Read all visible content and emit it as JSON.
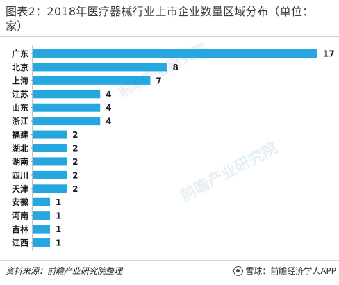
{
  "title": "图表2：2018年医疗器械行业上市企业数量区域分布（单位：家）",
  "source": "资料来源：前瞻产业研究院整理",
  "credit": {
    "logo_icon": "snowball-logo-icon",
    "text": "雪球：前瞻经济学人APP"
  },
  "watermark": "前瞻产业研究院",
  "colors": {
    "bar": "#27a7e0",
    "label": "#1a1a1a",
    "axis": "#8a8a8a"
  },
  "chart_data": {
    "type": "bar",
    "orientation": "horizontal",
    "title": "图表2：2018年医疗器械行业上市企业数量区域分布（单位：家）",
    "categories": [
      "广东",
      "北京",
      "上海",
      "江苏",
      "山东",
      "浙江",
      "福建",
      "湖北",
      "湖南",
      "四川",
      "天津",
      "安徽",
      "河南",
      "吉林",
      "江西"
    ],
    "values": [
      17,
      8,
      7,
      4,
      4,
      4,
      2,
      2,
      2,
      2,
      2,
      1,
      1,
      1,
      1
    ],
    "xlim": [
      0,
      17
    ],
    "grid": false,
    "legend": "none",
    "data_labels": true
  }
}
